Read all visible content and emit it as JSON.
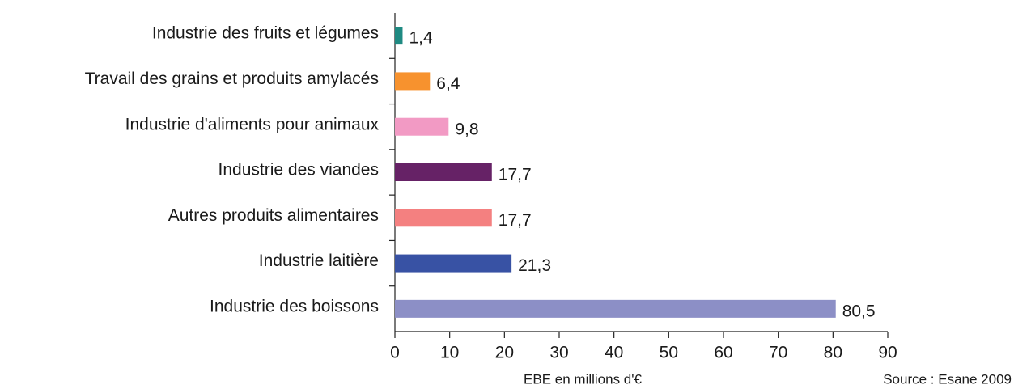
{
  "chart_data": {
    "type": "bar",
    "orientation": "horizontal",
    "categories": [
      "Industrie des fruits et légumes",
      "Travail des grains et produits amylacés",
      "Industrie d'aliments pour animaux",
      "Industrie des viandes",
      "Autres produits alimentaires",
      "Industrie laitière",
      "Industrie des boissons"
    ],
    "values": [
      1.4,
      6.4,
      9.8,
      17.7,
      17.7,
      21.3,
      80.5
    ],
    "value_labels": [
      "1,4",
      "6,4",
      "9,8",
      "17,7",
      "17,7",
      "21,3",
      "80,5"
    ],
    "colors": [
      "#1f8a82",
      "#f7922e",
      "#f29ac4",
      "#662266",
      "#f48080",
      "#3852a4",
      "#8c8fc6"
    ],
    "xlim": [
      0,
      90
    ],
    "xticks": [
      0,
      10,
      20,
      30,
      40,
      50,
      60,
      70,
      80,
      90
    ],
    "x_label": "EBE en millions d'€",
    "source": "Source : Esane 2009"
  }
}
